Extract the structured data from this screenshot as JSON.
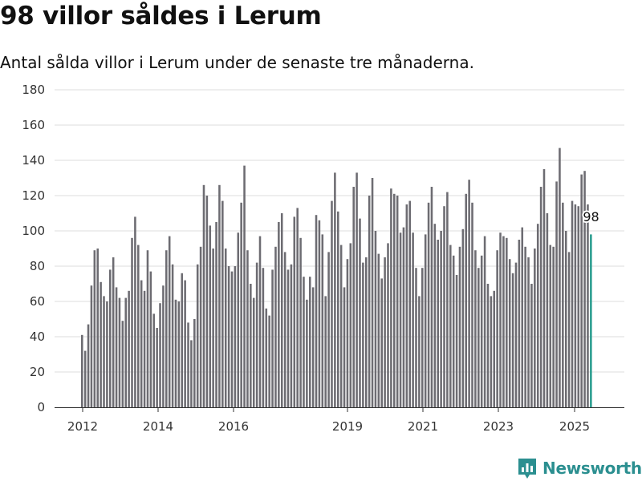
{
  "header": {
    "title": "98 villor såldes i Lerum",
    "subtitle": "Antal sålda villor i Lerum under de senaste tre månaderna."
  },
  "brand": {
    "name": "Newsworthy",
    "icon": "newsworthy-logo-icon"
  },
  "colors": {
    "bar": "#6d6c72",
    "highlight": "#2a9d8f",
    "grid": "#dddddd",
    "axis": "#333333",
    "brand": "#2b8f90"
  },
  "chart_data": {
    "type": "bar",
    "title": "98 villor såldes i Lerum",
    "subtitle": "Antal sålda villor i Lerum under de senaste tre månaderna.",
    "xlabel": "",
    "ylabel": "",
    "ylim": [
      0,
      180
    ],
    "yticks": [
      0,
      20,
      40,
      60,
      80,
      100,
      120,
      140,
      160,
      180
    ],
    "xticks": [
      "2012",
      "2014",
      "2016",
      "2019",
      "2021",
      "2023",
      "2025"
    ],
    "grid": true,
    "legend": "none",
    "last_value_label": "98",
    "values": [
      41,
      32,
      47,
      69,
      89,
      90,
      71,
      63,
      60,
      78,
      85,
      68,
      62,
      49,
      62,
      66,
      96,
      108,
      92,
      72,
      66,
      89,
      77,
      53,
      45,
      59,
      69,
      89,
      97,
      81,
      61,
      60,
      76,
      72,
      48,
      38,
      50,
      81,
      91,
      126,
      120,
      103,
      90,
      105,
      126,
      117,
      90,
      80,
      77,
      80,
      99,
      116,
      137,
      89,
      70,
      62,
      82,
      97,
      79,
      56,
      52,
      78,
      91,
      105,
      110,
      88,
      78,
      81,
      108,
      113,
      96,
      74,
      61,
      74,
      68,
      109,
      106,
      98,
      63,
      88,
      117,
      133,
      111,
      92,
      68,
      84,
      93,
      125,
      133,
      107,
      82,
      85,
      120,
      130,
      100,
      87,
      73,
      85,
      93,
      124,
      121,
      120,
      99,
      102,
      115,
      117,
      99,
      79,
      63,
      79,
      98,
      116,
      125,
      104,
      95,
      100,
      114,
      122,
      92,
      86,
      75,
      91,
      101,
      121,
      129,
      116,
      89,
      79,
      86,
      97,
      70,
      63,
      66,
      89,
      99,
      97,
      96,
      84,
      76,
      82,
      95,
      102,
      91,
      85,
      70,
      90,
      104,
      125,
      135,
      110,
      92,
      91,
      128,
      147,
      116,
      100,
      88,
      117,
      115,
      114,
      132,
      134,
      115,
      98
    ]
  }
}
